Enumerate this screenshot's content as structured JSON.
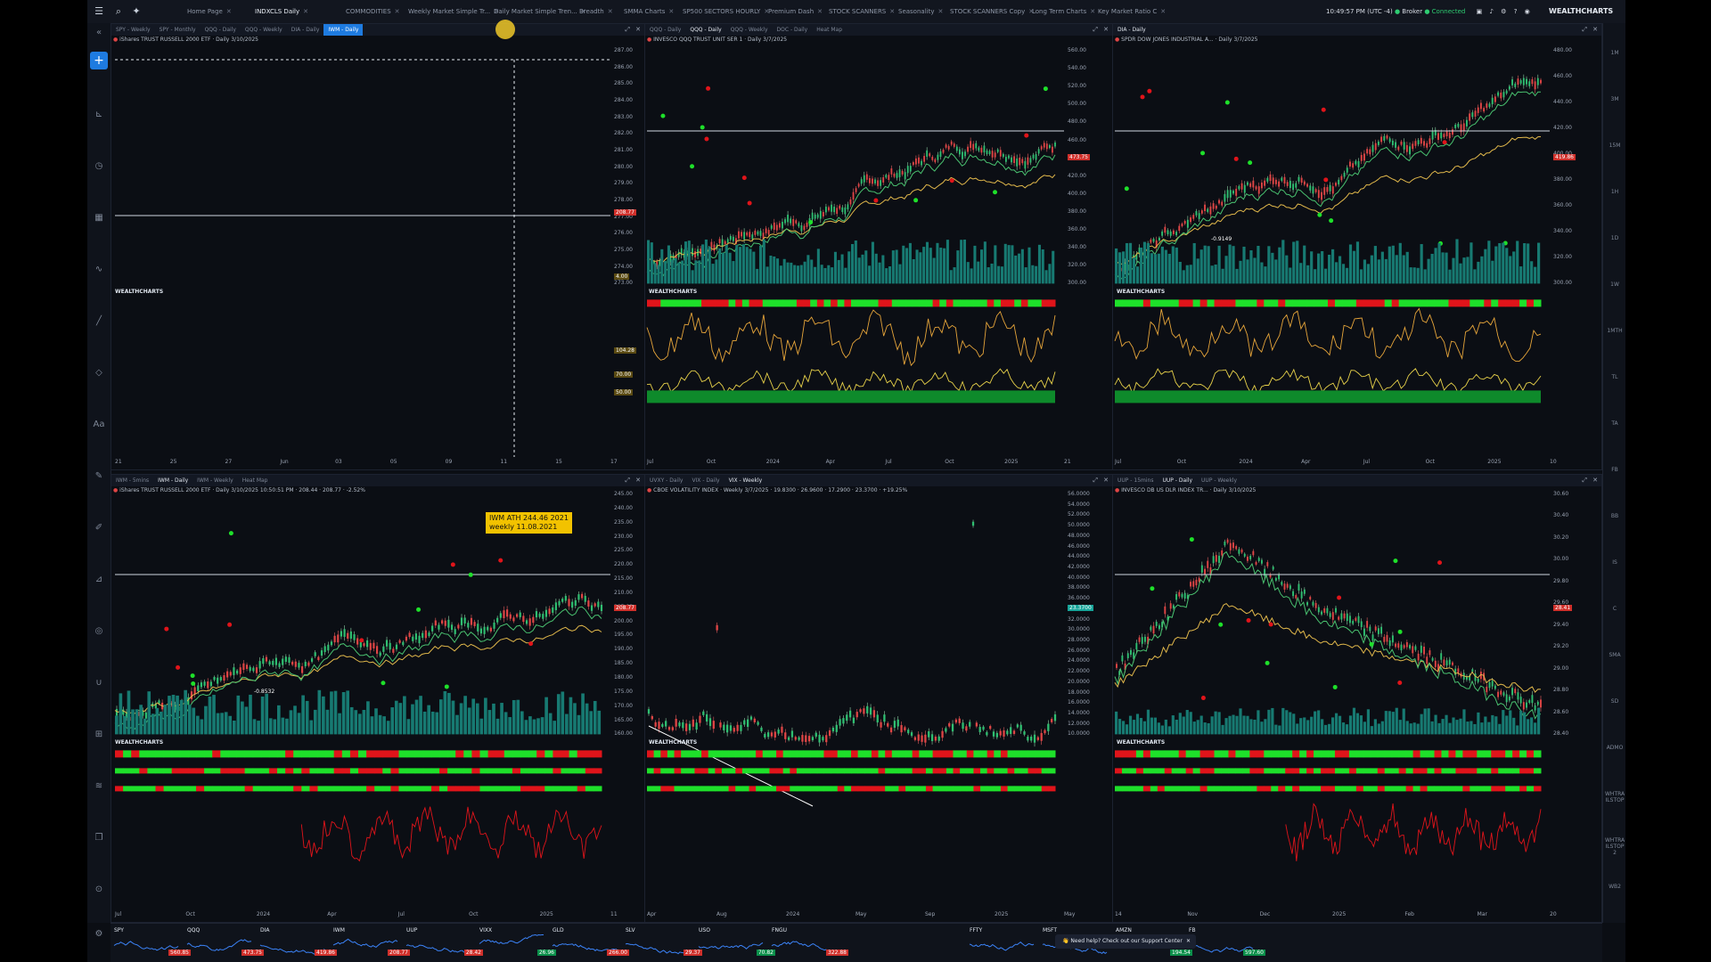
{
  "topbar": {
    "tabs": [
      {
        "label": "Home Page",
        "x": 112
      },
      {
        "label": "INDXCLS Daily",
        "x": 188,
        "active": true
      },
      {
        "label": "COMMODITIES",
        "x": 290
      },
      {
        "label": "Weekly Market Simple Tr...",
        "x": 360
      },
      {
        "label": "Daily Market Simple Tren...",
        "x": 456
      },
      {
        "label": "Breadth",
        "x": 552
      },
      {
        "label": "SMMA Charts",
        "x": 602
      },
      {
        "label": "SP500 SECTORS HOURLY",
        "x": 668
      },
      {
        "label": "Premium Dash",
        "x": 764
      },
      {
        "label": "STOCK SCANNERS",
        "x": 832
      },
      {
        "label": "Seasonality",
        "x": 910
      },
      {
        "label": "STOCK SCANNERS Copy",
        "x": 968
      },
      {
        "label": "Long Term Charts",
        "x": 1060
      },
      {
        "label": "Key Market Ratio C",
        "x": 1134
      }
    ],
    "time": "10:49:57 PM (UTC -4)",
    "broker": "Broker",
    "connected": "Connected",
    "brand": "WEALTHCHARTS"
  },
  "left_toolbar": {
    "add_label": "+"
  },
  "right_toolbar": {
    "labels": [
      "1M",
      "3M",
      "15M",
      "1H",
      "1D",
      "1W",
      "1MTH",
      "TL",
      "TA",
      "FB",
      "BB",
      "IS",
      "C",
      "SMA",
      "SD",
      "ADMO",
      "WHTRA ILSTOP",
      "WHTRA ILSTOP 2",
      "WB2"
    ]
  },
  "panels": [
    {
      "id": "p1",
      "tabs": [
        "SPY - Weekly",
        "SPY - Monthly",
        "QQQ - Daily",
        "QQQ - Weekly",
        "DIA - Daily",
        "IWM - Daily"
      ],
      "active_tab": 5,
      "title": "iShares TRUST RUSSELL 2000 ETF · Daily 3/10/2025",
      "yaxis": [
        "287.00",
        "286.00",
        "285.00",
        "284.00",
        "283.00",
        "282.00",
        "281.00",
        "280.00",
        "279.00",
        "278.00",
        "277.00",
        "276.00",
        "275.00",
        "274.00",
        "273.00"
      ],
      "xaxis": [
        "21",
        "25",
        "27",
        "Jun",
        "03",
        "05",
        "09",
        "11",
        "15",
        "17"
      ],
      "price_tags": [
        "208.77",
        "4.00",
        "104.28",
        "70.00",
        "50.00"
      ]
    },
    {
      "id": "p2",
      "tabs": [
        "QQQ - Daily",
        "QQQ - Daily",
        "QQQ - Weekly",
        "DOC - Daily",
        "Heat Map"
      ],
      "active_tab": 1,
      "title": "INVESCO QQQ TRUST UNIT SER 1 · Daily 3/7/2025",
      "yaxis": [
        "560.00",
        "540.00",
        "520.00",
        "500.00",
        "480.00",
        "460.00",
        "440.00",
        "420.00",
        "400.00",
        "380.00",
        "360.00",
        "340.00",
        "320.00",
        "300.00"
      ],
      "xaxis": [
        "Jul",
        "Oct",
        "2024",
        "Apr",
        "Jul",
        "Oct",
        "2025",
        "21"
      ],
      "price_tags": [
        "473.75"
      ]
    },
    {
      "id": "p3",
      "tabs": [
        "DIA - Daily"
      ],
      "active_tab": 0,
      "title": "SPDR DOW JONES INDUSTRIAL A... · Daily 3/7/2025",
      "yaxis": [
        "480.00",
        "460.00",
        "440.00",
        "420.00",
        "400.00",
        "380.00",
        "360.00",
        "340.00",
        "320.00",
        "300.00"
      ],
      "xaxis": [
        "Jul",
        "Oct",
        "2024",
        "Apr",
        "Jul",
        "Oct",
        "2025",
        "10"
      ],
      "price_tags": [
        "419.86"
      ],
      "annotation": "-0.9149"
    },
    {
      "id": "p4",
      "tabs": [
        "IWM - 5mins",
        "IWM - Daily",
        "IWM - Weekly",
        "Heat Map"
      ],
      "active_tab": 1,
      "title": "iShares TRUST RUSSELL 2000 ETF · Daily 3/10/2025 10:50:51 PM · 208.44 · 208.77 · -2.52%",
      "yaxis": [
        "245.00",
        "240.00",
        "235.00",
        "230.00",
        "225.00",
        "220.00",
        "215.00",
        "210.00",
        "205.00",
        "200.00",
        "195.00",
        "190.00",
        "185.00",
        "180.00",
        "175.00",
        "170.00",
        "165.00",
        "160.00"
      ],
      "xaxis": [
        "Jul",
        "Oct",
        "2024",
        "Apr",
        "Jul",
        "Oct",
        "2025",
        "11"
      ],
      "price_tags": [
        "208.77"
      ],
      "callout_1": "IWM ATH 244.46 2021",
      "callout_2": "weekly 11.08.2021",
      "annotation": "-0.8532"
    },
    {
      "id": "p5",
      "tabs": [
        "UVXY - Daily",
        "VIX - Daily",
        "VIX - Weekly"
      ],
      "active_tab": 2,
      "title": "CBOE VOLATILITY INDEX · Weekly 3/7/2025 · 19.8300 · 26.9600 · 17.2900 · 23.3700 · +19.25%",
      "yaxis": [
        "56.0000",
        "54.0000",
        "52.0000",
        "50.0000",
        "48.0000",
        "46.0000",
        "44.0000",
        "42.0000",
        "40.0000",
        "38.0000",
        "36.0000",
        "34.0000",
        "32.0000",
        "30.0000",
        "28.0000",
        "26.0000",
        "24.0000",
        "22.0000",
        "20.0000",
        "18.0000",
        "16.0000",
        "14.0000",
        "12.0000",
        "10.0000"
      ],
      "xaxis": [
        "Apr",
        "Aug",
        "2024",
        "May",
        "Sep",
        "2025",
        "May"
      ],
      "price_tags": [
        "23.3700"
      ]
    },
    {
      "id": "p6",
      "tabs": [
        "UUP - 15mins",
        "UUP - Daily",
        "UUP - Weekly"
      ],
      "active_tab": 1,
      "title": "INVESCO DB US DLR INDEX TR... · Daily 3/10/2025",
      "yaxis": [
        "30.60",
        "30.40",
        "30.20",
        "30.00",
        "29.80",
        "29.60",
        "29.40",
        "29.20",
        "29.00",
        "28.80",
        "28.60",
        "28.40"
      ],
      "xaxis": [
        "14",
        "Nov",
        "Dec",
        "2025",
        "Feb",
        "Mar",
        "20"
      ],
      "price_tags": [
        "28.41"
      ]
    }
  ],
  "watermark": "WEALTHCHARTS",
  "bottom_bar": {
    "minis": [
      {
        "sym": "SPY",
        "px": "560.85",
        "color": "#d0302b"
      },
      {
        "sym": "QQQ",
        "px": "473.75",
        "color": "#d0302b"
      },
      {
        "sym": "DIA",
        "px": "419.86",
        "color": "#d0302b"
      },
      {
        "sym": "IWM",
        "px": "208.77",
        "color": "#d0302b"
      },
      {
        "sym": "UUP",
        "px": "28.42",
        "color": "#d0302b"
      },
      {
        "sym": "VIXX",
        "px": "26.96",
        "color": "#0b8f4a"
      },
      {
        "sym": "GLD",
        "px": "266.00",
        "color": "#d0302b"
      },
      {
        "sym": "SLV",
        "px": "29.37",
        "color": "#d0302b"
      },
      {
        "sym": "USO",
        "px": "70.82",
        "color": "#0b8f4a"
      },
      {
        "sym": "FNGU",
        "px": "322.88",
        "color": "#d0302b"
      },
      {
        "sym": "FFTY",
        "px": "",
        "color": "#d0302b"
      },
      {
        "sym": "MSFT",
        "px": "",
        "color": "#d0302b"
      },
      {
        "sym": "AMZN",
        "px": "194.54",
        "color": "#0b8f4a"
      },
      {
        "sym": "FB",
        "px": "597.60",
        "color": "#0b8f4a"
      }
    ],
    "support_text": "Need help? Check out our Support Center"
  }
}
